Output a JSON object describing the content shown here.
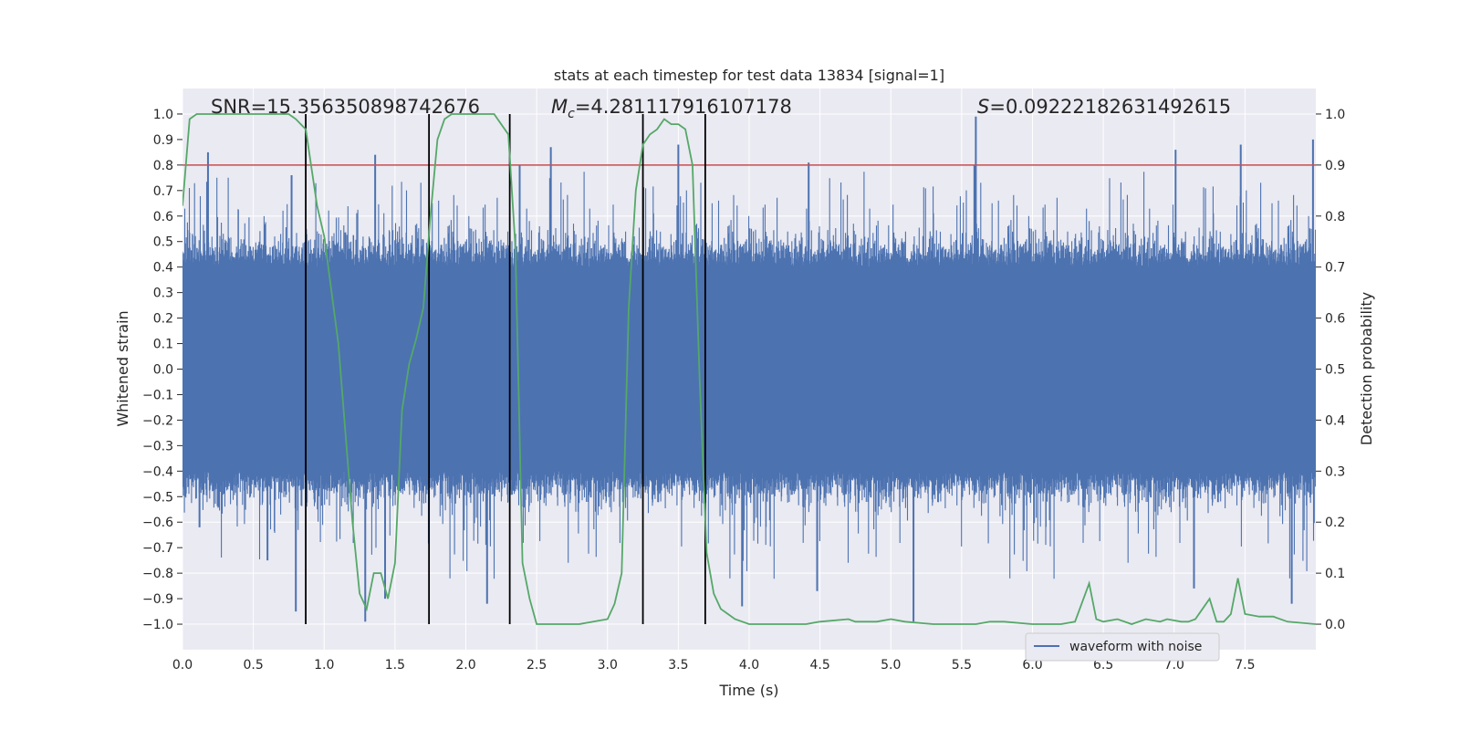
{
  "chart_data": {
    "type": "line",
    "title": "stats at each timestep for test data 13834 [signal=1]",
    "xlabel": "Time (s)",
    "ylabel_left": "Whitened strain",
    "ylabel_right": "Detection probability",
    "xlim": [
      0.0,
      8.0
    ],
    "ylim_left": [
      -1.1,
      1.1
    ],
    "ylim_right": [
      -0.05,
      1.05
    ],
    "xticks": [
      0.0,
      0.5,
      1.0,
      1.5,
      2.0,
      2.5,
      3.0,
      3.5,
      4.0,
      4.5,
      5.0,
      5.5,
      6.0,
      6.5,
      7.0,
      7.5
    ],
    "xtick_labels": [
      "0.0",
      "0.5",
      "1.0",
      "1.5",
      "2.0",
      "2.5",
      "3.0",
      "3.5",
      "4.0",
      "4.5",
      "5.0",
      "5.5",
      "6.0",
      "6.5",
      "7.0",
      "7.5"
    ],
    "yticks_left": [
      1.0,
      0.9,
      0.8,
      0.7,
      0.6,
      0.5,
      0.4,
      0.3,
      0.2,
      0.1,
      0.0,
      -0.1,
      -0.2,
      -0.3,
      -0.4,
      -0.5,
      -0.6,
      -0.7,
      -0.8,
      -0.9,
      -1.0
    ],
    "ytick_labels_left": [
      "1.0",
      "0.9",
      "0.8",
      "0.7",
      "0.6",
      "0.5",
      "0.4",
      "0.3",
      "0.2",
      "0.1",
      "0.0",
      "−0.1",
      "−0.2",
      "−0.3",
      "−0.4",
      "−0.5",
      "−0.6",
      "−0.7",
      "−0.8",
      "−0.9",
      "−1.0"
    ],
    "yticks_right": [
      1.0,
      0.9,
      0.8,
      0.7,
      0.6,
      0.5,
      0.4,
      0.3,
      0.2,
      0.1,
      0.0
    ],
    "ytick_labels_right": [
      "1.0",
      "0.9",
      "0.8",
      "0.7",
      "0.6",
      "0.5",
      "0.4",
      "0.3",
      "0.2",
      "0.1",
      "0.0"
    ],
    "annotations": {
      "snr": "SNR=15.356350898742676",
      "mc_symbol": "M",
      "mc_subscript": "c",
      "mc_value": "=4.281117916107178",
      "s_symbol": "S",
      "s_value": "=0.09222182631492615"
    },
    "threshold": {
      "axis": "right",
      "value": 0.9,
      "color": "#c44e52"
    },
    "vlines": [
      0.87,
      1.74,
      2.31,
      3.25,
      3.69
    ],
    "vline_range": [
      -1.0,
      1.0
    ],
    "legend": {
      "label": "waveform with noise",
      "position": "bottom-right"
    },
    "series": [
      {
        "name": "waveform with noise",
        "axis": "left",
        "color": "#4c72b0",
        "style": "noise band, core ±0.4, spikes up to ±0.95",
        "core_amplitude": 0.4,
        "peak_spikes": [
          {
            "x": 0.18,
            "y": 0.85
          },
          {
            "x": 0.12,
            "y": -0.62
          },
          {
            "x": 0.6,
            "y": -0.75
          },
          {
            "x": 0.77,
            "y": 0.76
          },
          {
            "x": 0.8,
            "y": -0.95
          },
          {
            "x": 1.29,
            "y": -0.99
          },
          {
            "x": 1.36,
            "y": 0.84
          },
          {
            "x": 1.43,
            "y": -0.9
          },
          {
            "x": 2.15,
            "y": -0.92
          },
          {
            "x": 2.38,
            "y": 0.8
          },
          {
            "x": 2.6,
            "y": 0.87
          },
          {
            "x": 3.5,
            "y": 0.88
          },
          {
            "x": 3.95,
            "y": -0.93
          },
          {
            "x": 4.42,
            "y": 0.81
          },
          {
            "x": 4.48,
            "y": -0.87
          },
          {
            "x": 5.16,
            "y": -0.99
          },
          {
            "x": 5.6,
            "y": 0.99
          },
          {
            "x": 5.59,
            "y": 0.8
          },
          {
            "x": 7.01,
            "y": 0.86
          },
          {
            "x": 7.14,
            "y": -0.86
          },
          {
            "x": 7.47,
            "y": 0.88
          },
          {
            "x": 7.83,
            "y": -0.92
          },
          {
            "x": 7.98,
            "y": 0.9
          }
        ]
      },
      {
        "name": "detection probability",
        "axis": "right",
        "color": "#55a868",
        "x": [
          0.0,
          0.05,
          0.1,
          0.2,
          0.3,
          0.4,
          0.5,
          0.6,
          0.7,
          0.75,
          0.8,
          0.87,
          0.95,
          1.0,
          1.1,
          1.2,
          1.25,
          1.3,
          1.35,
          1.4,
          1.45,
          1.5,
          1.55,
          1.6,
          1.65,
          1.7,
          1.75,
          1.8,
          1.85,
          1.9,
          2.0,
          2.1,
          2.2,
          2.3,
          2.35,
          2.4,
          2.45,
          2.5,
          2.6,
          2.8,
          3.0,
          3.05,
          3.1,
          3.15,
          3.2,
          3.25,
          3.3,
          3.35,
          3.4,
          3.45,
          3.5,
          3.55,
          3.6,
          3.65,
          3.7,
          3.75,
          3.8,
          3.85,
          3.9,
          4.0,
          4.2,
          4.3,
          4.4,
          4.5,
          4.7,
          4.75,
          4.9,
          5.0,
          5.1,
          5.3,
          5.5,
          5.6,
          5.7,
          5.8,
          6.0,
          6.2,
          6.3,
          6.4,
          6.45,
          6.5,
          6.6,
          6.7,
          6.8,
          6.9,
          6.95,
          7.05,
          7.1,
          7.15,
          7.2,
          7.25,
          7.3,
          7.35,
          7.4,
          7.45,
          7.5,
          7.6,
          7.7,
          7.8,
          8.0
        ],
        "y": [
          0.82,
          0.99,
          1.0,
          1.0,
          1.0,
          1.0,
          1.0,
          1.0,
          1.0,
          1.0,
          0.99,
          0.97,
          0.82,
          0.76,
          0.55,
          0.2,
          0.06,
          0.03,
          0.1,
          0.1,
          0.05,
          0.12,
          0.42,
          0.51,
          0.56,
          0.62,
          0.8,
          0.95,
          0.99,
          1.0,
          1.0,
          1.0,
          1.0,
          0.96,
          0.74,
          0.12,
          0.05,
          0.0,
          0.0,
          0.0,
          0.01,
          0.04,
          0.1,
          0.62,
          0.85,
          0.94,
          0.96,
          0.97,
          0.99,
          0.98,
          0.98,
          0.97,
          0.9,
          0.48,
          0.14,
          0.06,
          0.03,
          0.02,
          0.01,
          0.0,
          0.0,
          0.0,
          0.0,
          0.005,
          0.01,
          0.005,
          0.005,
          0.01,
          0.005,
          0.0,
          0.0,
          0.0,
          0.005,
          0.005,
          0.0,
          0.0,
          0.005,
          0.08,
          0.01,
          0.005,
          0.01,
          0.0,
          0.01,
          0.005,
          0.01,
          0.005,
          0.005,
          0.01,
          0.03,
          0.05,
          0.005,
          0.005,
          0.02,
          0.09,
          0.02,
          0.015,
          0.015,
          0.005,
          0.0
        ]
      }
    ]
  }
}
